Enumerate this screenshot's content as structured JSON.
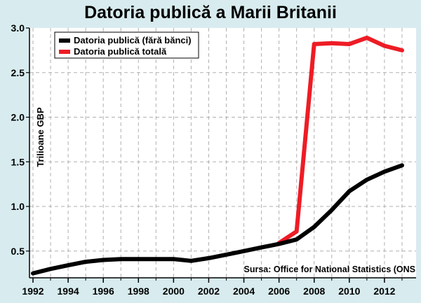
{
  "chart_data": {
    "type": "line",
    "title": "Datoria publică a Marii Britanii",
    "ylabel": "Trilioane GBP",
    "xlabel": "",
    "source": "Sursa: Office for National Statistics (ONS",
    "xlim": [
      1991.8,
      2013.8
    ],
    "ylim": [
      0.2,
      3.0
    ],
    "x_ticks": [
      1992,
      1994,
      1996,
      1998,
      2000,
      2002,
      2004,
      2006,
      2008,
      2010,
      2012
    ],
    "y_ticks": [
      0.5,
      1.0,
      1.5,
      2.0,
      2.5,
      3.0
    ],
    "y_tick_labels": [
      "0.5",
      "1.0",
      "1.5",
      "2.0",
      "2.5",
      "3.0"
    ],
    "grid": true,
    "legend_position": "top-left",
    "x": [
      1992,
      1993,
      1994,
      1995,
      1996,
      1997,
      1998,
      1999,
      2000,
      2001,
      2002,
      2003,
      2004,
      2005,
      2006,
      2007,
      2008,
      2009,
      2010,
      2011,
      2012,
      2013
    ],
    "series": [
      {
        "name": "Datoria publică (fără bănci)",
        "color": "#000000",
        "x": [
          1992,
          1993,
          1994,
          1995,
          1996,
          1997,
          1998,
          1999,
          2000,
          2001,
          2002,
          2003,
          2004,
          2005,
          2006,
          2007,
          2008,
          2009,
          2010,
          2011,
          2012,
          2013
        ],
        "values": [
          0.25,
          0.3,
          0.34,
          0.38,
          0.4,
          0.41,
          0.41,
          0.41,
          0.41,
          0.39,
          0.42,
          0.46,
          0.5,
          0.54,
          0.58,
          0.63,
          0.77,
          0.96,
          1.17,
          1.3,
          1.39,
          1.46
        ]
      },
      {
        "name": "Datoria publică totală",
        "color": "#ee1c25",
        "x": [
          2006,
          2007,
          2008,
          2009,
          2010,
          2011,
          2012,
          2013
        ],
        "values": [
          0.59,
          0.72,
          2.82,
          2.83,
          2.82,
          2.89,
          2.8,
          2.75
        ]
      }
    ]
  }
}
